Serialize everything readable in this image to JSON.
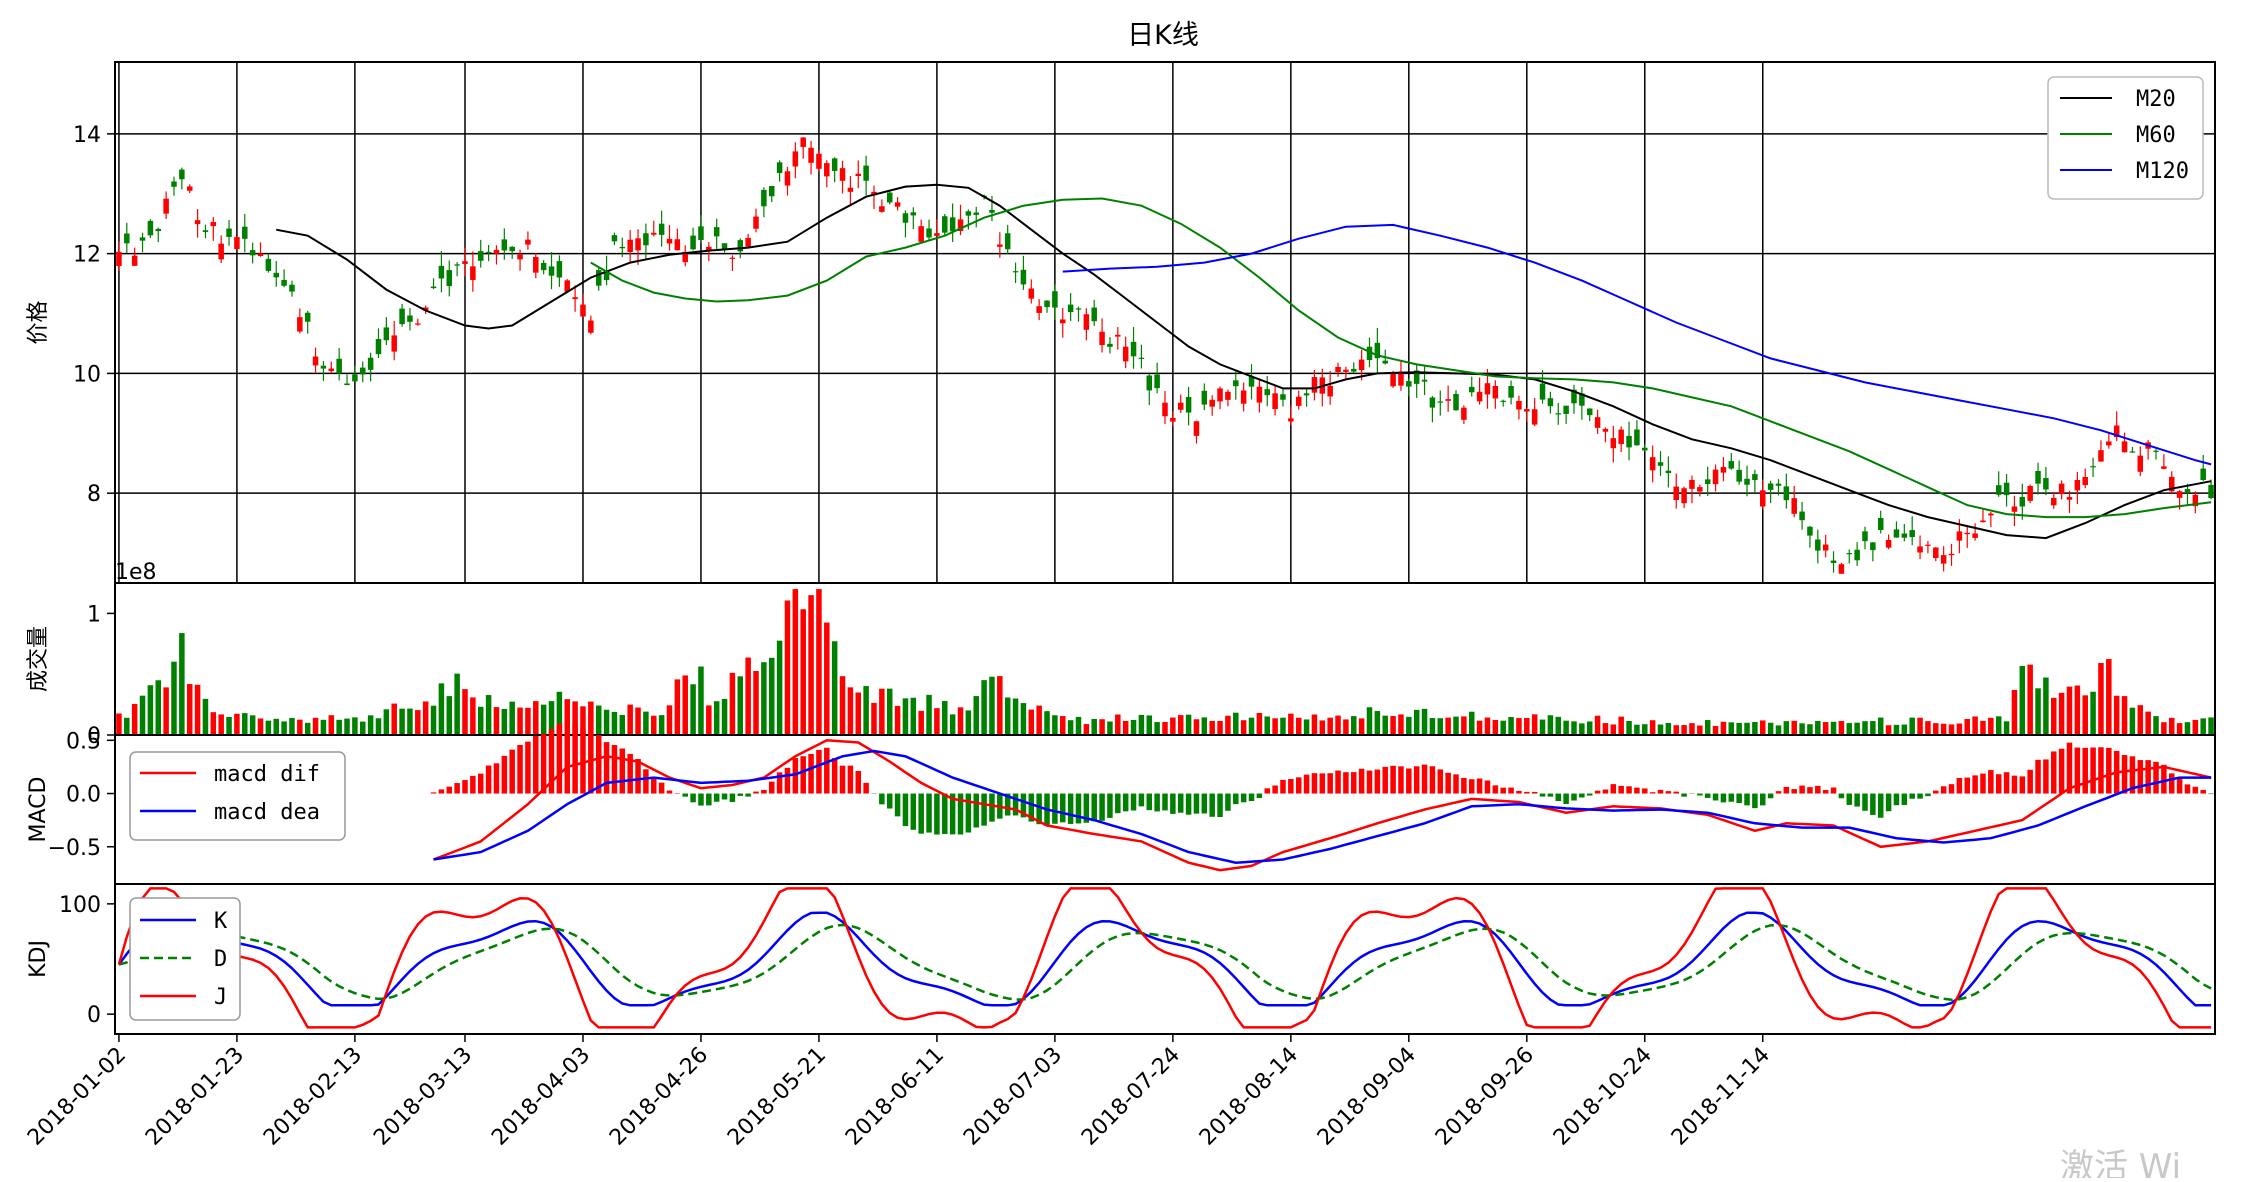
{
  "title": "日K线",
  "watermark": "激活 Wi",
  "colors": {
    "up": "#ff0000",
    "down": "#008000",
    "m20": "#000000",
    "m60": "#008000",
    "m120": "#0000ff",
    "dif": "#ff0000",
    "dea": "#0000ff",
    "k": "#0000ff",
    "d": "#008000",
    "j": "#ff0000"
  },
  "x_dates": [
    "2018-01-02",
    "2018-01-23",
    "2018-02-13",
    "2018-03-13",
    "2018-04-03",
    "2018-04-26",
    "2018-05-21",
    "2018-06-11",
    "2018-07-03",
    "2018-07-24",
    "2018-08-14",
    "2018-09-04",
    "2018-09-26",
    "2018-10-24",
    "2018-11-14"
  ],
  "chart_data": [
    {
      "type": "line",
      "name": "candlestick",
      "ylabel": "价格",
      "ylim": [
        6.5,
        15.2
      ],
      "yticks": [
        8,
        10,
        12,
        14
      ],
      "grid": true,
      "legend_position": "top-right",
      "series": [
        {
          "name": "M20",
          "points": [
            [
              20,
              12.4
            ],
            [
              24,
              12.3
            ],
            [
              29,
              11.9
            ],
            [
              34,
              11.4
            ],
            [
              39,
              11.05
            ],
            [
              44,
              10.8
            ],
            [
              47,
              10.75
            ],
            [
              50,
              10.8
            ],
            [
              55,
              11.2
            ],
            [
              60,
              11.6
            ],
            [
              65,
              11.85
            ],
            [
              70,
              11.98
            ],
            [
              75,
              12.05
            ],
            [
              80,
              12.1
            ],
            [
              85,
              12.2
            ],
            [
              90,
              12.6
            ],
            [
              95,
              12.95
            ],
            [
              100,
              13.12
            ],
            [
              104,
              13.15
            ],
            [
              108,
              13.1
            ],
            [
              112,
              12.8
            ],
            [
              116,
              12.4
            ],
            [
              120,
              12.0
            ],
            [
              124,
              11.65
            ],
            [
              128,
              11.25
            ],
            [
              132,
              10.85
            ],
            [
              136,
              10.45
            ],
            [
              140,
              10.15
            ],
            [
              144,
              9.95
            ],
            [
              148,
              9.75
            ],
            [
              152,
              9.75
            ],
            [
              156,
              9.9
            ],
            [
              160,
              10.0
            ],
            [
              165,
              10.02
            ],
            [
              170,
              10.0
            ],
            [
              175,
              9.98
            ],
            [
              180,
              9.9
            ],
            [
              185,
              9.7
            ],
            [
              190,
              9.45
            ],
            [
              195,
              9.15
            ],
            [
              200,
              8.9
            ],
            [
              205,
              8.75
            ],
            [
              210,
              8.55
            ],
            [
              215,
              8.3
            ],
            [
              220,
              8.05
            ],
            [
              225,
              7.8
            ],
            [
              230,
              7.6
            ],
            [
              235,
              7.45
            ],
            [
              240,
              7.3
            ],
            [
              245,
              7.25
            ],
            [
              250,
              7.5
            ],
            [
              255,
              7.8
            ],
            [
              260,
              8.05
            ],
            [
              266,
              8.2
            ]
          ]
        },
        {
          "name": "M60",
          "points": [
            [
              60,
              11.85
            ],
            [
              64,
              11.55
            ],
            [
              68,
              11.35
            ],
            [
              72,
              11.25
            ],
            [
              76,
              11.2
            ],
            [
              80,
              11.22
            ],
            [
              85,
              11.3
            ],
            [
              90,
              11.55
            ],
            [
              95,
              11.95
            ],
            [
              100,
              12.1
            ],
            [
              105,
              12.3
            ],
            [
              110,
              12.6
            ],
            [
              115,
              12.8
            ],
            [
              120,
              12.9
            ],
            [
              125,
              12.92
            ],
            [
              130,
              12.8
            ],
            [
              135,
              12.5
            ],
            [
              140,
              12.1
            ],
            [
              145,
              11.6
            ],
            [
              150,
              11.05
            ],
            [
              155,
              10.6
            ],
            [
              160,
              10.3
            ],
            [
              165,
              10.15
            ],
            [
              170,
              10.05
            ],
            [
              175,
              9.95
            ],
            [
              180,
              9.92
            ],
            [
              185,
              9.9
            ],
            [
              190,
              9.85
            ],
            [
              195,
              9.75
            ],
            [
              200,
              9.6
            ],
            [
              205,
              9.45
            ],
            [
              210,
              9.2
            ],
            [
              215,
              8.95
            ],
            [
              220,
              8.7
            ],
            [
              225,
              8.4
            ],
            [
              230,
              8.1
            ],
            [
              235,
              7.8
            ],
            [
              240,
              7.65
            ],
            [
              245,
              7.6
            ],
            [
              250,
              7.6
            ],
            [
              255,
              7.65
            ],
            [
              260,
              7.75
            ],
            [
              266,
              7.85
            ]
          ]
        },
        {
          "name": "M120",
          "points": [
            [
              120,
              11.7
            ],
            [
              126,
              11.75
            ],
            [
              132,
              11.78
            ],
            [
              138,
              11.85
            ],
            [
              144,
              12.0
            ],
            [
              150,
              12.25
            ],
            [
              156,
              12.45
            ],
            [
              162,
              12.48
            ],
            [
              168,
              12.3
            ],
            [
              174,
              12.1
            ],
            [
              180,
              11.85
            ],
            [
              186,
              11.55
            ],
            [
              192,
              11.2
            ],
            [
              198,
              10.85
            ],
            [
              204,
              10.55
            ],
            [
              210,
              10.25
            ],
            [
              216,
              10.05
            ],
            [
              222,
              9.85
            ],
            [
              228,
              9.7
            ],
            [
              234,
              9.55
            ],
            [
              240,
              9.4
            ],
            [
              246,
              9.25
            ],
            [
              252,
              9.05
            ],
            [
              258,
              8.8
            ],
            [
              264,
              8.55
            ],
            [
              266,
              8.48
            ]
          ]
        }
      ]
    },
    {
      "type": "bar",
      "name": "volume",
      "ylabel": "成交量",
      "offset_label": "1e8",
      "ylim": [
        0,
        1.25
      ],
      "yticks": [
        0,
        1
      ]
    },
    {
      "type": "line",
      "name": "MACD",
      "ylabel": "MACD",
      "ylim": [
        -0.85,
        0.55
      ],
      "yticks": [
        -0.5,
        0.0,
        0.5
      ],
      "ytick_labels": [
        "−0.5",
        "0.0",
        "0.5"
      ],
      "legend_position": "top-left",
      "series": [
        {
          "name": "macd dif"
        },
        {
          "name": "macd dea"
        }
      ]
    },
    {
      "type": "line",
      "name": "KDJ",
      "ylabel": "KDJ",
      "ylim": [
        -18,
        118
      ],
      "yticks": [
        0,
        100
      ],
      "legend_position": "top-left",
      "series": [
        {
          "name": "K"
        },
        {
          "name": "D"
        },
        {
          "name": "J"
        }
      ]
    }
  ]
}
